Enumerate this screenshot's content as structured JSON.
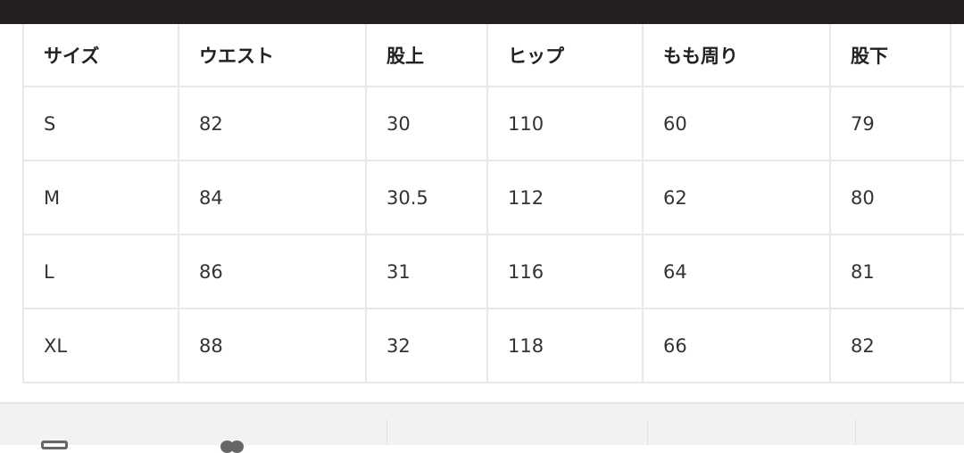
{
  "table": {
    "headers": [
      "サイズ",
      "ウエスト",
      "股上",
      "ヒップ",
      "もも周り",
      "股下"
    ],
    "rows": [
      [
        "S",
        "82",
        "30",
        "110",
        "60",
        "79"
      ],
      [
        "M",
        "84",
        "30.5",
        "112",
        "62",
        "80"
      ],
      [
        "L",
        "86",
        "31",
        "116",
        "64",
        "81"
      ],
      [
        "XL",
        "88",
        "32",
        "118",
        "66",
        "82"
      ]
    ]
  },
  "footer": {
    "icons": [
      "list-icon",
      "heart-icon"
    ]
  }
}
